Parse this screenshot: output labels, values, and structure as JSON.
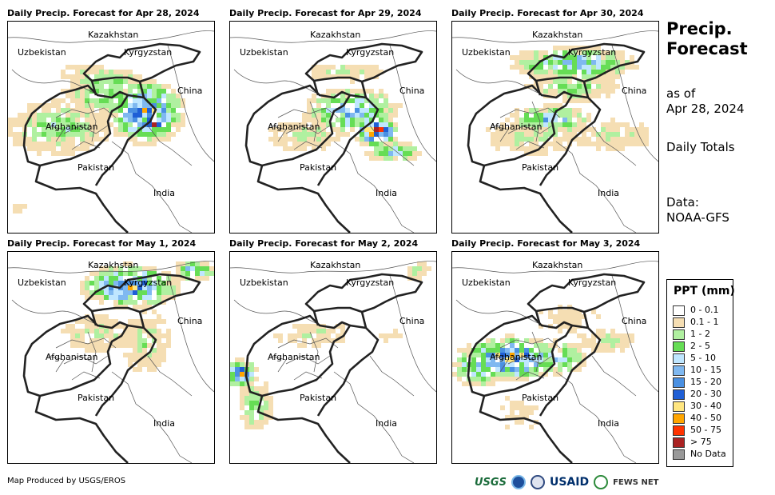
{
  "panels": [
    {
      "title": "Daily Precip. Forecast for Apr 28, 2024"
    },
    {
      "title": "Daily Precip. Forecast for Apr 29, 2024"
    },
    {
      "title": "Daily Precip. Forecast for Apr 30, 2024"
    },
    {
      "title": "Daily Precip. Forecast for May 1, 2024"
    },
    {
      "title": "Daily Precip. Forecast for May 2, 2024"
    },
    {
      "title": "Daily Precip. Forecast for May 3, 2024"
    }
  ],
  "places": {
    "kazakhstan": "Kazakhstan",
    "uzbekistan": "Uzbekistan",
    "kyrgyzstan": "Kyrgyzstan",
    "china": "China",
    "afghanistan": "Afghanistan",
    "pakistan": "Pakistan",
    "india": "India"
  },
  "side": {
    "title_line1": "Precip.",
    "title_line2": "Forecast",
    "asof_line1": "as of",
    "asof_line2": "Apr 28, 2024",
    "totals": "Daily Totals",
    "data_line1": "Data:",
    "data_line2": "NOAA-GFS"
  },
  "legend": {
    "title": "PPT (mm)",
    "items": [
      {
        "label": "0 - 0.1",
        "color": "#ffffff"
      },
      {
        "label": "0.1 - 1",
        "color": "#f5deb3"
      },
      {
        "label": "1 - 2",
        "color": "#b0f0a0"
      },
      {
        "label": "2 - 5",
        "color": "#66dd55"
      },
      {
        "label": "5 - 10",
        "color": "#bfe6ff"
      },
      {
        "label": "10 - 15",
        "color": "#7fb8f0"
      },
      {
        "label": "15 - 20",
        "color": "#4a90e2"
      },
      {
        "label": "20 - 30",
        "color": "#1f5fd6"
      },
      {
        "label": "30 - 40",
        "color": "#ffe680"
      },
      {
        "label": "40 - 50",
        "color": "#ffa500"
      },
      {
        "label": "50 - 75",
        "color": "#ff3300"
      },
      {
        "label": "> 75",
        "color": "#aa2222"
      },
      {
        "label": "No Data",
        "color": "#999999"
      }
    ]
  },
  "footer": {
    "credit": "Map Produced by USGS/EROS",
    "logo_usgs": "USGS",
    "logo_usaid": "USAID",
    "logo_fews": "FEWS NET"
  }
}
